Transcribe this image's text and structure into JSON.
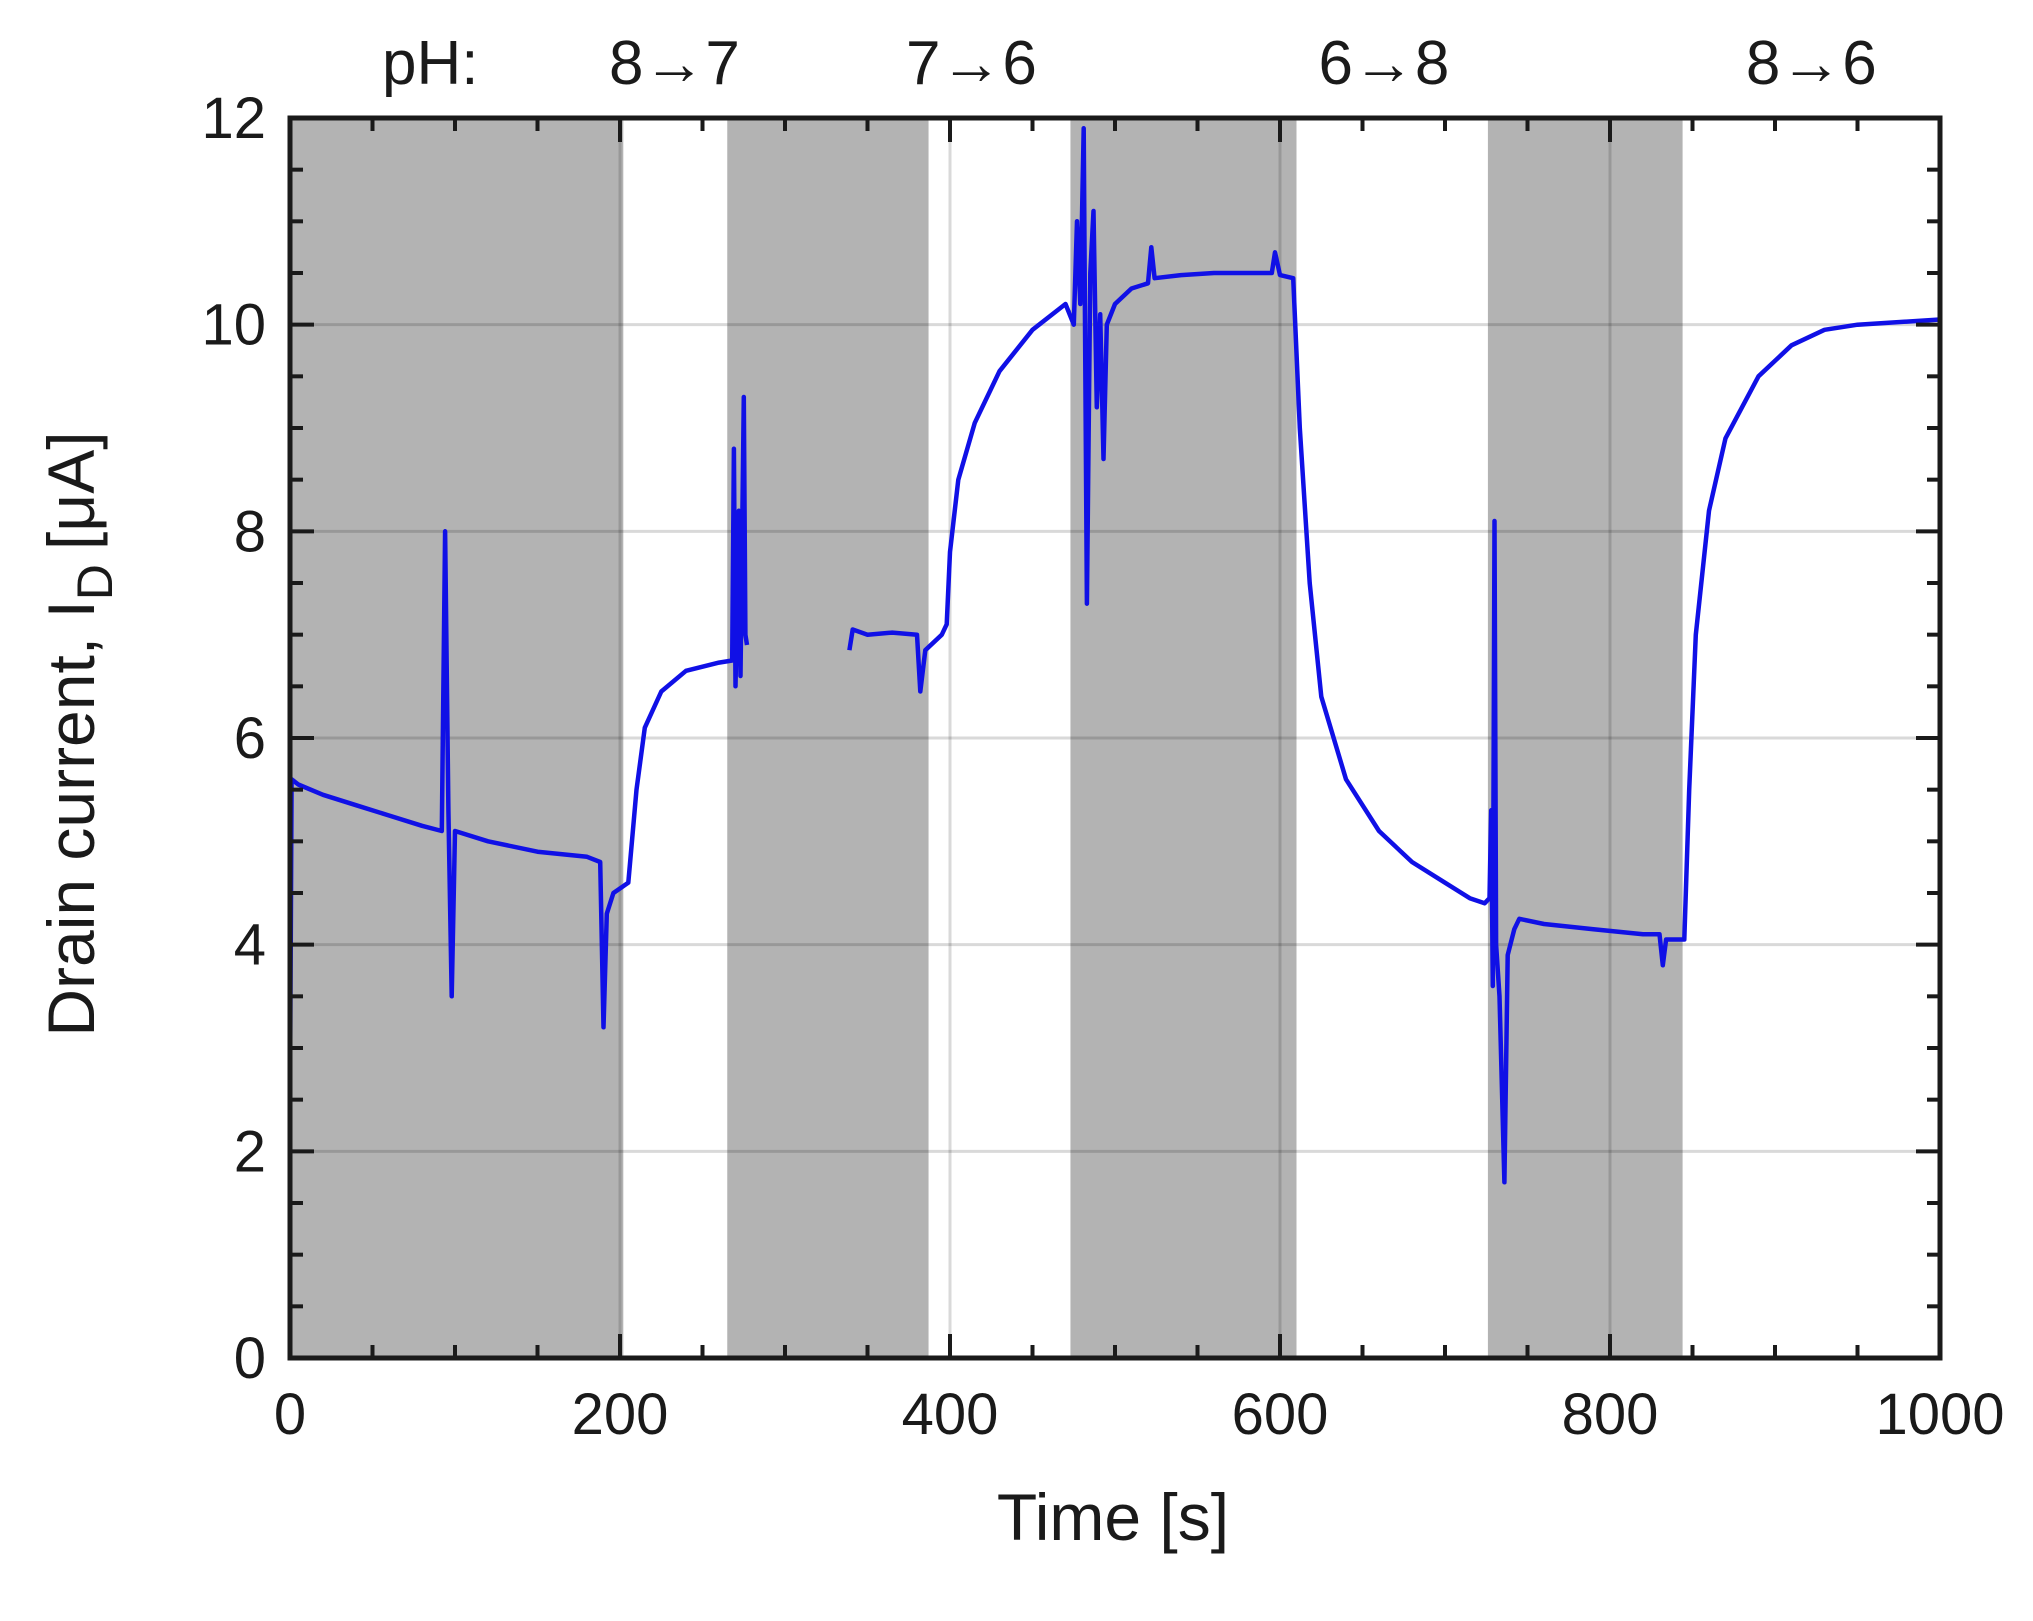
{
  "chart_data": {
    "type": "line",
    "xlabel": "Time [s]",
    "ylabel": "Drain current, I",
    "ylabel_subscript": "D",
    "ylabel_unit": "[μA]",
    "xlim": [
      0,
      1000
    ],
    "ylim": [
      0,
      12
    ],
    "x_ticks": [
      0,
      200,
      400,
      600,
      800,
      1000
    ],
    "y_ticks": [
      0,
      2,
      4,
      6,
      8,
      10,
      12
    ],
    "x_tick_labels": [
      "0",
      "200",
      "400",
      "600",
      "800",
      "1000"
    ],
    "y_tick_labels": [
      "0",
      "2",
      "4",
      "6",
      "8",
      "10",
      "12"
    ],
    "grid": true,
    "shaded_regions": [
      [
        0,
        202
      ],
      [
        265,
        387
      ],
      [
        473,
        610
      ],
      [
        726,
        844
      ]
    ],
    "shade_color": "#b3b3b3",
    "line_color": "#1010e6",
    "ph_header": "pH:",
    "ph_transitions": [
      {
        "label": "8→7",
        "x": 233
      },
      {
        "label": "7→6",
        "x": 413
      },
      {
        "label": "6→8",
        "x": 663
      },
      {
        "label": "8→6",
        "x": 922
      }
    ],
    "series": [
      {
        "segments": [
          [
            [
              0,
              2.6
            ],
            [
              1,
              5.6
            ],
            [
              5,
              5.55
            ],
            [
              20,
              5.45
            ],
            [
              40,
              5.35
            ],
            [
              60,
              5.25
            ],
            [
              80,
              5.15
            ],
            [
              92,
              5.1
            ],
            [
              94,
              8.0
            ],
            [
              96,
              5.3
            ],
            [
              98,
              3.5
            ],
            [
              100,
              5.1
            ],
            [
              120,
              5.0
            ],
            [
              150,
              4.9
            ],
            [
              180,
              4.85
            ],
            [
              188,
              4.8
            ],
            [
              190,
              3.2
            ],
            [
              192,
              4.3
            ],
            [
              196,
              4.5
            ],
            [
              205,
              4.6
            ],
            [
              210,
              5.5
            ],
            [
              215,
              6.1
            ],
            [
              225,
              6.45
            ],
            [
              240,
              6.65
            ],
            [
              260,
              6.73
            ],
            [
              268,
              6.75
            ],
            [
              269,
              8.8
            ],
            [
              270,
              6.5
            ],
            [
              272,
              8.2
            ],
            [
              273,
              6.6
            ],
            [
              275,
              9.3
            ],
            [
              276,
              7.0
            ],
            [
              277,
              6.9
            ]
          ],
          [
            [
              339,
              6.85
            ],
            [
              341,
              7.05
            ],
            [
              350,
              7.0
            ],
            [
              365,
              7.02
            ],
            [
              380,
              7.0
            ],
            [
              382,
              6.45
            ],
            [
              385,
              6.85
            ],
            [
              395,
              7.0
            ],
            [
              398,
              7.1
            ],
            [
              400,
              7.8
            ],
            [
              405,
              8.5
            ],
            [
              415,
              9.05
            ],
            [
              430,
              9.55
            ],
            [
              450,
              9.95
            ],
            [
              470,
              10.2
            ],
            [
              475,
              10.0
            ],
            [
              477,
              11.0
            ],
            [
              479,
              10.2
            ],
            [
              481,
              11.9
            ],
            [
              483,
              7.3
            ],
            [
              485,
              10.5
            ],
            [
              487,
              11.1
            ],
            [
              489,
              9.2
            ],
            [
              491,
              10.1
            ],
            [
              493,
              8.7
            ],
            [
              495,
              10.0
            ],
            [
              500,
              10.2
            ],
            [
              510,
              10.35
            ],
            [
              520,
              10.4
            ],
            [
              522,
              10.75
            ],
            [
              524,
              10.45
            ],
            [
              540,
              10.48
            ],
            [
              560,
              10.5
            ],
            [
              595,
              10.5
            ],
            [
              597,
              10.7
            ],
            [
              600,
              10.48
            ],
            [
              608,
              10.45
            ],
            [
              612,
              9.0
            ],
            [
              618,
              7.5
            ],
            [
              625,
              6.4
            ],
            [
              640,
              5.6
            ],
            [
              660,
              5.1
            ],
            [
              680,
              4.8
            ],
            [
              700,
              4.6
            ],
            [
              715,
              4.45
            ],
            [
              724,
              4.4
            ],
            [
              727,
              4.45
            ],
            [
              728,
              5.3
            ],
            [
              729,
              3.6
            ],
            [
              730,
              8.1
            ],
            [
              731,
              4.0
            ],
            [
              733,
              3.5
            ],
            [
              736,
              1.7
            ],
            [
              738,
              3.9
            ],
            [
              742,
              4.15
            ],
            [
              745,
              4.25
            ],
            [
              760,
              4.2
            ],
            [
              790,
              4.15
            ],
            [
              820,
              4.1
            ],
            [
              830,
              4.1
            ],
            [
              832,
              3.8
            ],
            [
              834,
              4.05
            ],
            [
              845,
              4.05
            ],
            [
              848,
              5.5
            ],
            [
              852,
              7.0
            ],
            [
              860,
              8.2
            ],
            [
              870,
              8.9
            ],
            [
              890,
              9.5
            ],
            [
              910,
              9.8
            ],
            [
              930,
              9.95
            ],
            [
              950,
              10.0
            ],
            [
              980,
              10.03
            ],
            [
              1000,
              10.05
            ]
          ]
        ]
      }
    ]
  }
}
